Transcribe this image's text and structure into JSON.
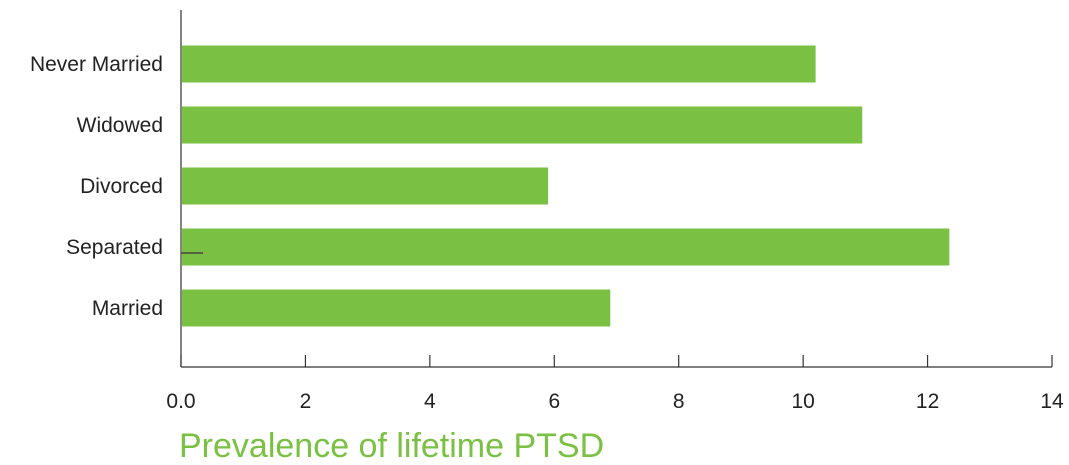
{
  "chart_data": {
    "type": "bar",
    "orientation": "horizontal",
    "categories": [
      "Never Married",
      "Widowed",
      "Divorced",
      "Separated",
      "Married"
    ],
    "values": [
      10.2,
      10.95,
      5.9,
      12.35,
      6.9
    ],
    "xlabel": "Prevalence of lifetime PTSD",
    "ylabel": "",
    "xlim": [
      0,
      14
    ],
    "xticks": [
      0,
      2,
      4,
      6,
      8,
      10,
      12,
      14
    ],
    "xtick_labels": [
      "0.0",
      "2",
      "4",
      "6",
      "8",
      "10",
      "12",
      "14"
    ],
    "grid": false,
    "colors": {
      "bar": "#7AC143",
      "axis": "#333333",
      "xlabel": "#7AC143",
      "text": "#222222"
    }
  }
}
